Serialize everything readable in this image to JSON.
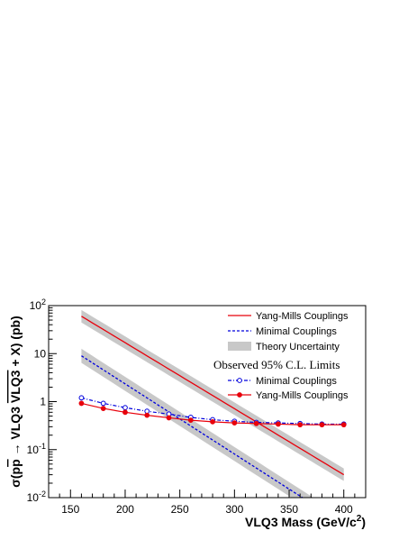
{
  "chart_data": {
    "type": "line",
    "title": "",
    "xlabel": "VLQ3 Mass (GeV/c",
    "xlabel_sup": "2",
    "xlabel_close": ")",
    "ylabel_prefix": "σ(p",
    "ylabel_pbar": "p",
    "ylabel_arrow": " → VLQ3 ",
    "ylabel_vlq3bar": "VLQ3",
    "ylabel_suffix": " + X) (pb)",
    "xlim": [
      130,
      420
    ],
    "ylim": [
      0.01,
      100
    ],
    "yscale": "log",
    "x_ticks": [
      150,
      200,
      250,
      300,
      350,
      400
    ],
    "x_tick_labels": [
      "150",
      "200",
      "250",
      "300",
      "350",
      "400"
    ],
    "y_ticks": [
      0.01,
      0.1,
      1,
      10,
      100
    ],
    "y_tick_labels": [
      {
        "base": "10",
        "sup": "-2"
      },
      {
        "base": "10",
        "sup": "-1"
      },
      {
        "base": "1",
        "sup": ""
      },
      {
        "base": "10",
        "sup": ""
      },
      {
        "base": "10",
        "sup": "2"
      }
    ],
    "legend_position": "top-right",
    "theory": [
      {
        "name": "Yang-Mills Couplings",
        "color": "#e8000b",
        "style": "solid",
        "x": [
          160,
          400
        ],
        "y": [
          60,
          0.03
        ],
        "band_factor": 1.35
      },
      {
        "name": "Minimal Couplings",
        "color": "#0000dd",
        "style": "dashed",
        "x": [
          160,
          400
        ],
        "y": [
          9,
          0.0028
        ],
        "band_factor": 1.4
      }
    ],
    "band_name": "Theory Uncertainty",
    "band_color": "#c8c8c8",
    "limits_header": "Observed 95% C.L. Limits",
    "limits": [
      {
        "name": "Minimal Couplings",
        "color": "#0000dd",
        "style": "dash-dot",
        "marker": "open-circle",
        "x": [
          160,
          180,
          200,
          220,
          240,
          260,
          280,
          300,
          320,
          340,
          360,
          380,
          400
        ],
        "y": [
          1.2,
          0.92,
          0.75,
          0.63,
          0.55,
          0.47,
          0.42,
          0.39,
          0.37,
          0.36,
          0.35,
          0.34,
          0.34
        ]
      },
      {
        "name": "Yang-Mills Couplings",
        "color": "#e8000b",
        "style": "solid",
        "marker": "filled-circle",
        "x": [
          160,
          180,
          200,
          220,
          240,
          260,
          280,
          300,
          320,
          340,
          360,
          380,
          400
        ],
        "y": [
          0.92,
          0.72,
          0.6,
          0.52,
          0.46,
          0.41,
          0.38,
          0.36,
          0.35,
          0.34,
          0.33,
          0.33,
          0.33
        ]
      }
    ]
  }
}
